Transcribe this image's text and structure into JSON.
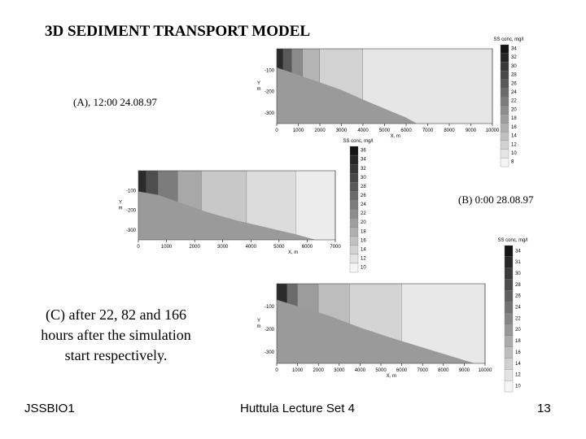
{
  "slide": {
    "title": "3D SEDIMENT TRANSPORT MODEL",
    "caption_a": "(A), 12:00 24.08.97",
    "caption_b": "(B) 0:00 28.08.97",
    "caption_c": "(C)  after 22, 82 and 166 hours after the simulation start respectively.",
    "footer_left": "JSSBIO1",
    "footer_center": "Huttula Lecture Set 4",
    "footer_right": "13"
  },
  "chart_data": [
    {
      "type": "heatmap",
      "panel": "A",
      "xlabel": "X, m",
      "ylabel": "Y\nm",
      "x_ticks": [
        0,
        1000,
        2000,
        3000,
        4000,
        5000,
        6000,
        7000,
        8000,
        9000,
        10000
      ],
      "y_ticks": [
        -100,
        -200,
        -300
      ],
      "colorbar_title": "SS conc, mg/l",
      "colorbar_ticks": [
        34,
        32,
        30,
        28,
        26,
        24,
        22,
        20,
        18,
        16,
        14,
        12,
        10,
        8
      ]
    },
    {
      "type": "heatmap",
      "panel": "B",
      "xlabel": "X, m",
      "ylabel": "Y\nm",
      "x_ticks": [
        0,
        1000,
        2000,
        3000,
        4000,
        5000,
        6000,
        7000
      ],
      "y_ticks": [
        -100,
        -200,
        -300
      ],
      "colorbar_title": "SS conc, mg/l",
      "colorbar_ticks": [
        36,
        34,
        32,
        30,
        28,
        26,
        24,
        22,
        20,
        18,
        16,
        14,
        12,
        10
      ]
    },
    {
      "type": "heatmap",
      "panel": "C",
      "xlabel": "X, m",
      "ylabel": "Y\nm",
      "x_ticks": [
        0,
        1000,
        2000,
        3000,
        4000,
        5000,
        6000,
        7000,
        8000,
        9000,
        10000
      ],
      "y_ticks": [
        -100,
        -200,
        -300
      ],
      "colorbar_title": "SS conc, mg/l",
      "colorbar_ticks": [
        34,
        31,
        30,
        28,
        26,
        24,
        22,
        20,
        18,
        16,
        14,
        12,
        10
      ]
    }
  ]
}
